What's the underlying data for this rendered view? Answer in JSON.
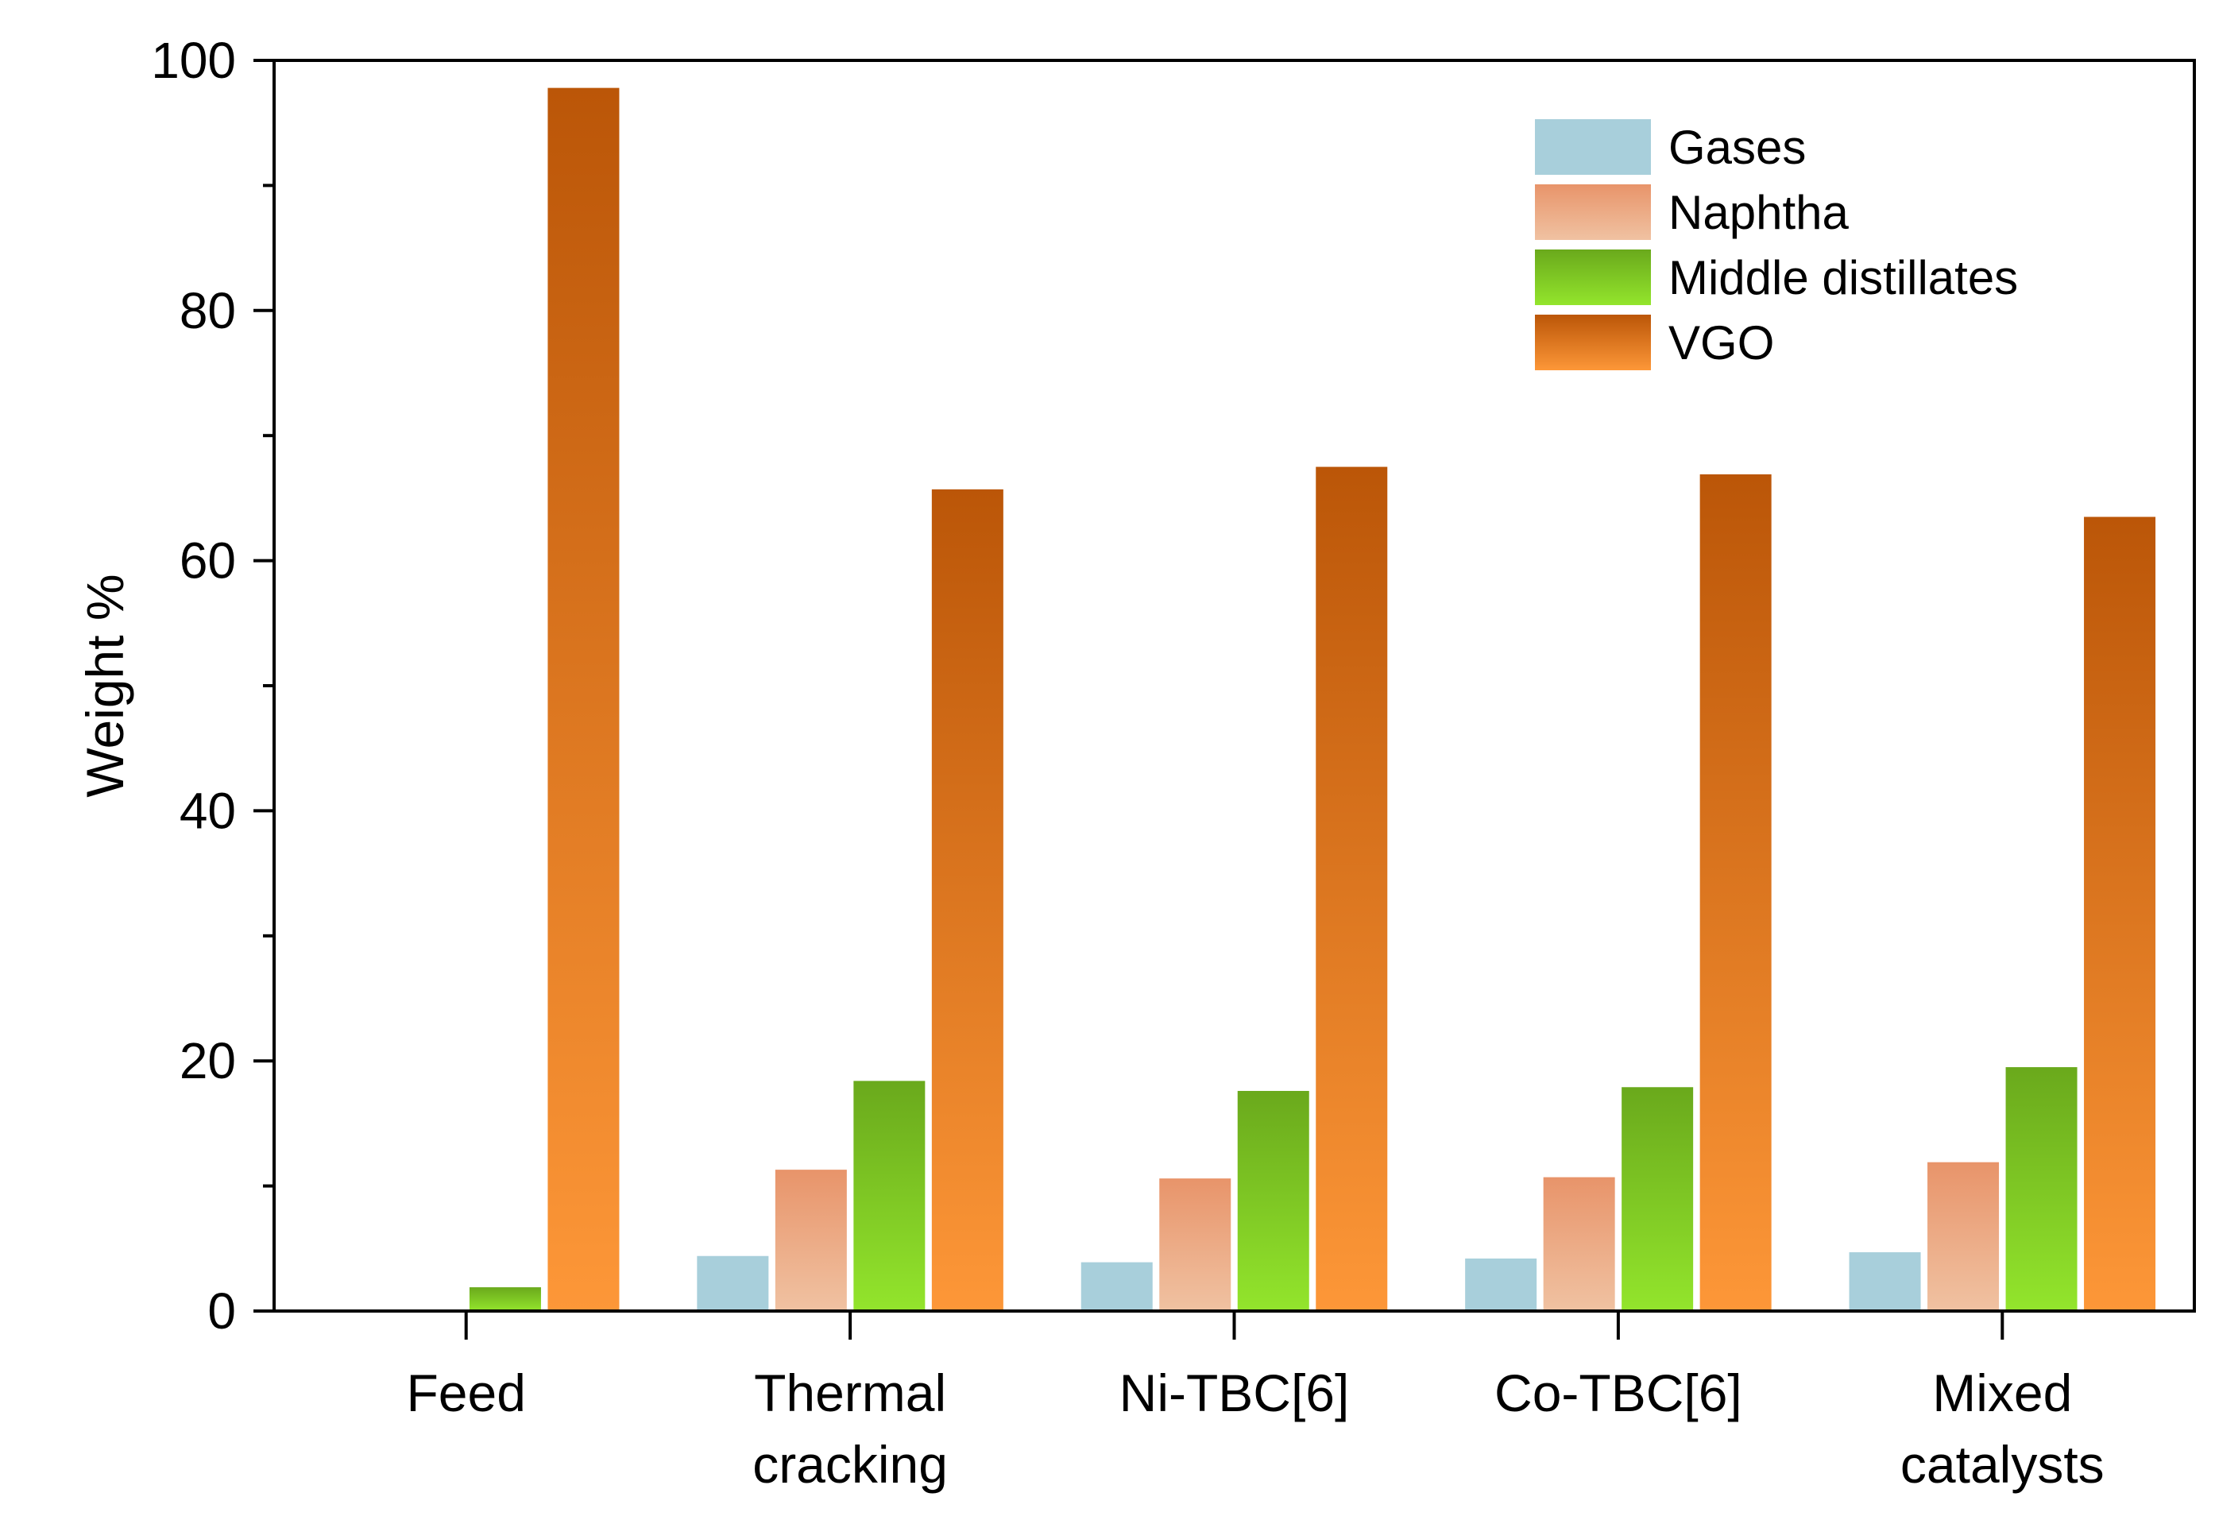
{
  "chart_data": {
    "type": "bar",
    "title": "",
    "xlabel": "",
    "ylabel": "Weight %",
    "ylim": [
      0,
      100
    ],
    "yticks": [
      0,
      20,
      40,
      60,
      80,
      100
    ],
    "grid": false,
    "legend_position": "top-right",
    "categories": [
      [
        "Feed"
      ],
      [
        "Thermal",
        "cracking"
      ],
      [
        "Ni-TBC[6]"
      ],
      [
        "Co-TBC[6]"
      ],
      [
        "Mixed",
        "catalysts"
      ]
    ],
    "series": [
      {
        "name": "Gases",
        "values": [
          0,
          4.4,
          3.9,
          4.2,
          4.7
        ],
        "color_top": "#a8cfdb",
        "color_bottom": "#a8cfdb"
      },
      {
        "name": "Naphtha",
        "values": [
          0,
          11.3,
          10.6,
          10.7,
          11.9
        ],
        "color_top": "#e8946a",
        "color_bottom": "#f0c2a2"
      },
      {
        "name": "Middle distillates",
        "values": [
          1.9,
          18.4,
          17.6,
          17.9,
          19.5
        ],
        "color_top": "#6aa91c",
        "color_bottom": "#93e52c"
      },
      {
        "name": "VGO",
        "values": [
          97.8,
          65.7,
          67.5,
          66.9,
          63.5
        ],
        "color_top": "#bb5608",
        "color_bottom": "#fd9738"
      }
    ]
  }
}
